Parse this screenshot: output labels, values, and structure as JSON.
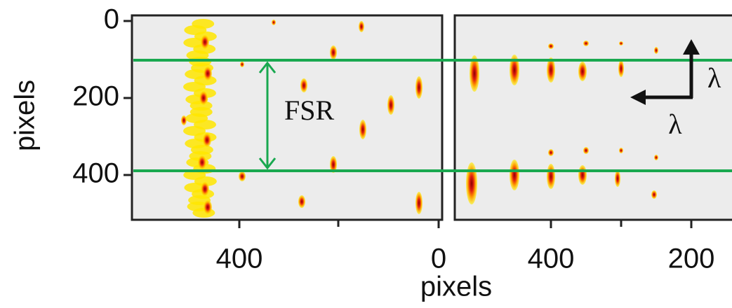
{
  "y_axis": {
    "label": "pixels",
    "ticks": [
      "0",
      "200",
      "400"
    ]
  },
  "x_axis": {
    "label": "pixels",
    "left_ticks": [
      "400",
      "0"
    ],
    "right_ticks": [
      "400",
      "200"
    ]
  },
  "annotations": {
    "fsr": "FSR",
    "lambda_vertical": "λ",
    "lambda_horizontal": "λ"
  }
}
